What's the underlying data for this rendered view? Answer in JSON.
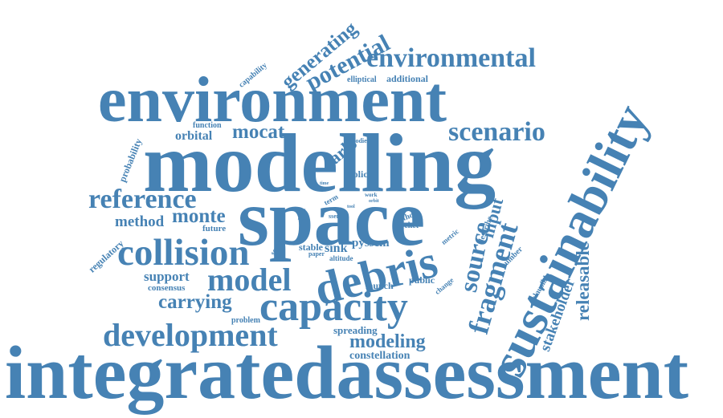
{
  "color": "#4682b4",
  "words": {
    "integratedassessment": "integratedassessment",
    "environment": "environment",
    "modelling": "modelling",
    "space": "space",
    "sustainability": "sustainability",
    "capacity": "capacity",
    "debris": "debris",
    "collision": "collision",
    "development": "development",
    "environmental": "environmental",
    "scenario": "scenario",
    "reference": "reference",
    "model": "model",
    "fragment": "fragment",
    "source": "source",
    "potential": "potential",
    "generating": "generating",
    "carrying": "carrying",
    "monte": "monte",
    "mocat": "mocat",
    "orbital": "orbital",
    "method": "method",
    "modeling": "modeling",
    "releasable": "releasable",
    "stakeholder": "stakeholder",
    "input": "input",
    "carlo": "carlo",
    "support": "support",
    "consensus": "consensus",
    "future": "future",
    "spreading": "spreading",
    "constellation": "constellation",
    "problem": "problem",
    "launch": "launch",
    "public": "public",
    "pyssem": "pyssem",
    "sink": "sink",
    "stable": "stable",
    "policy": "policy",
    "regulatory": "regulatory",
    "probability": "probability",
    "capability": "capability",
    "function": "function",
    "additional": "additional",
    "elliptical": "elliptical",
    "plausible": "plausible",
    "number": "number",
    "describe": "describe",
    "metric": "metric",
    "change": "change",
    "several": "several",
    "shell": "shell",
    "python": "python",
    "rocket": "rocket",
    "term": "term",
    "ssem": "ssem",
    "altitude": "altitude",
    "paper": "paper",
    "bodies": "bodies",
    "work": "work",
    "orbit": "orbit",
    "time": "time",
    "tool": "tool"
  }
}
